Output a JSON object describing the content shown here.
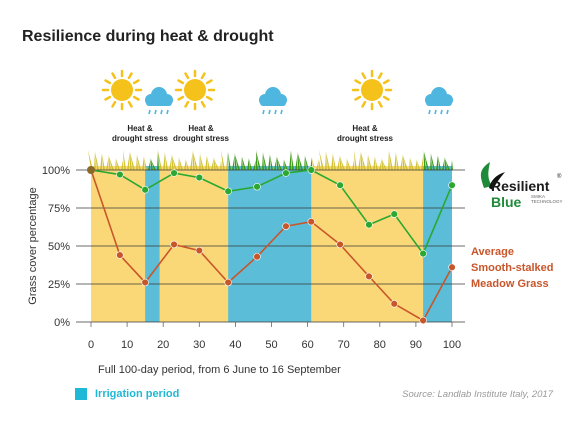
{
  "title": "Resilience during heat & drought",
  "stress_labels": [
    "Heat &\ndrought stress",
    "Heat &\ndrought stress",
    "Heat &\ndrought stress"
  ],
  "legend": {
    "label": "Irrigation period"
  },
  "source": "Source: Landlab Institute Italy, 2017",
  "brand": {
    "line1": "Resilient",
    "line2": "Blue",
    "sub": "SMIKA TECHNOLOGY",
    "reg": "®"
  },
  "average_label": [
    "Average",
    "Smooth-stalked",
    "Meadow Grass"
  ],
  "icons": [
    "sun-icon",
    "rain-cloud-icon",
    "sun-icon",
    "rain-cloud-icon",
    "sun-icon",
    "rain-cloud-icon"
  ],
  "colors": {
    "drought_band": "#fbd877",
    "irrigation_band": "#5bbdd8",
    "resilient_blue": "#2aa832",
    "average": "#c8562b",
    "sun": "#f4c21b",
    "cloud": "#4fb6e0",
    "grass_green": "#3f9a1b",
    "grass_yellow": "#d1c235"
  },
  "chart_data": {
    "type": "line",
    "xlabel": "Full 100-day period, from 6 June to 16 September",
    "ylabel": "Grass cover percentage",
    "x_ticks": [
      0,
      10,
      20,
      30,
      40,
      50,
      60,
      70,
      80,
      90,
      100
    ],
    "y_ticks": [
      "0%",
      "25%",
      "50%",
      "75%",
      "100%"
    ],
    "xlim": [
      0,
      100
    ],
    "ylim": [
      0,
      100
    ],
    "irrigation_periods": [
      [
        15,
        19
      ],
      [
        38,
        61
      ],
      [
        92,
        100
      ]
    ],
    "series": [
      {
        "name": "Resilient Blue",
        "x": [
          0,
          8,
          15,
          23,
          30,
          38,
          46,
          54,
          61,
          69,
          77,
          84,
          92,
          100
        ],
        "y": [
          100,
          97,
          87,
          98,
          95,
          86,
          89,
          98,
          100,
          90,
          64,
          71,
          45,
          90
        ]
      },
      {
        "name": "Average Smooth-stalked Meadow Grass",
        "x": [
          0,
          8,
          15,
          23,
          30,
          38,
          46,
          54,
          61,
          69,
          77,
          84,
          92,
          100
        ],
        "y": [
          100,
          44,
          26,
          51,
          47,
          26,
          43,
          63,
          66,
          51,
          30,
          12,
          1,
          36
        ]
      }
    ]
  }
}
